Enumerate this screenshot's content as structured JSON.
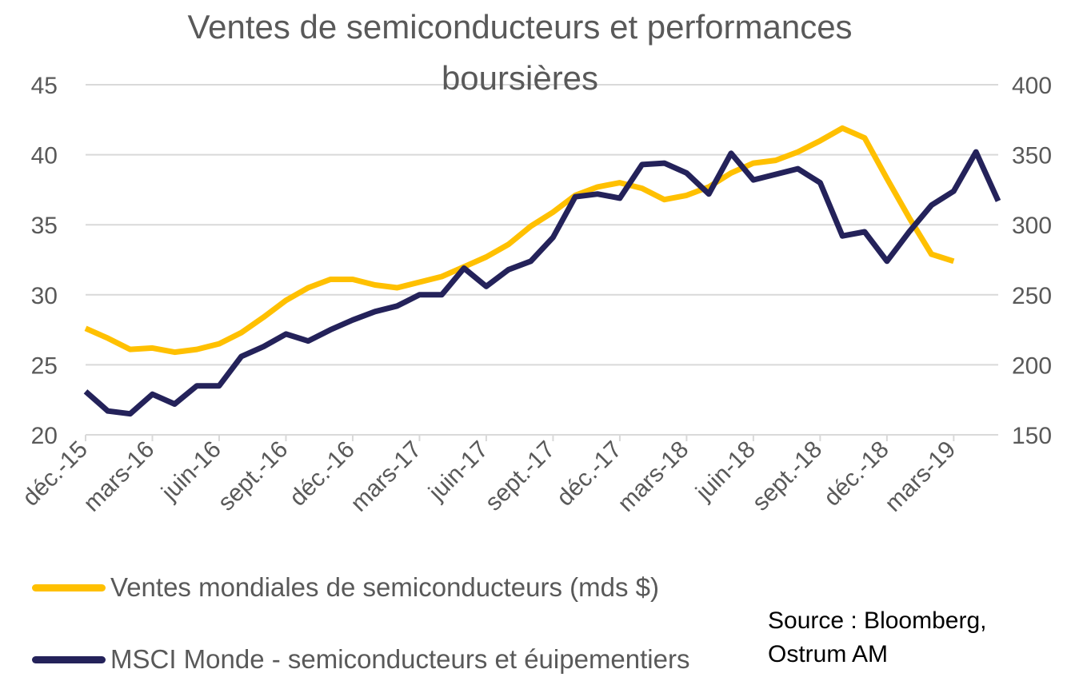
{
  "chart_data": {
    "type": "line",
    "title_line1": "Ventes de semiconducteurs et performances",
    "title_line2": "boursières",
    "y_left": {
      "min": 20,
      "max": 45,
      "ticks": [
        "20",
        "25",
        "30",
        "35",
        "40",
        "45"
      ]
    },
    "y_right": {
      "min": 150,
      "max": 400,
      "ticks": [
        "150",
        "200",
        "250",
        "300",
        "350",
        "400"
      ]
    },
    "x_labels": [
      "déc.-15",
      "mars-16",
      "juin-16",
      "sept.-16",
      "déc.-16",
      "mars-17",
      "juin-17",
      "sept.-17",
      "déc.-17",
      "mars-18",
      "juin-18",
      "sept.-18",
      "déc.-18",
      "mars-19"
    ],
    "series": [
      {
        "name": "Ventes mondiales de semiconducteurs (mds $)",
        "axis": "left",
        "color": "#FFC000",
        "values": [
          27.6,
          26.9,
          26.1,
          26.2,
          25.9,
          26.1,
          26.5,
          27.3,
          28.4,
          29.6,
          30.5,
          31.1,
          31.1,
          30.7,
          30.5,
          30.9,
          31.3,
          32.0,
          32.7,
          33.6,
          34.9,
          35.9,
          37.1,
          37.7,
          38.0,
          37.6,
          36.8,
          37.1,
          37.7,
          38.7,
          39.4,
          39.6,
          40.2,
          41.0,
          41.9,
          41.2,
          38.3,
          35.5,
          32.9,
          32.4
        ],
        "colorName": "yellow"
      },
      {
        "name": "MSCI Monde - semiconducteurs et éuipementiers",
        "axis": "right",
        "color": "#24225A",
        "values": [
          181,
          167,
          165,
          179,
          172,
          185,
          185,
          206,
          213,
          222,
          217,
          225,
          232,
          238,
          242,
          250,
          250,
          269,
          256,
          268,
          274,
          291,
          320,
          322,
          319,
          343,
          344,
          337,
          322,
          351,
          332,
          336,
          340,
          330,
          292,
          295,
          274,
          295,
          314,
          324,
          352,
          317
        ]
      }
    ],
    "source_line1": "Source : Bloomberg,",
    "source_line2": "Ostrum AM"
  }
}
